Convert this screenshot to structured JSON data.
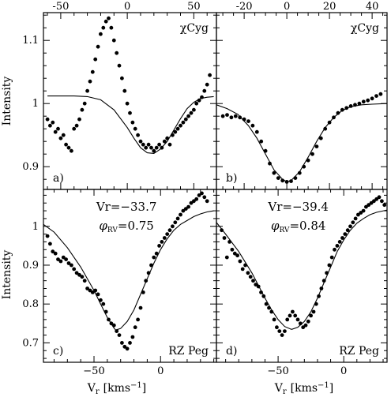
{
  "figure": {
    "ylabel": "Intensity",
    "xlabel_main": "V",
    "xlabel_sub": "r",
    "xlabel_unit": "[kms",
    "xlabel_exp": "−1",
    "xlabel_close": "]"
  },
  "chart_data": [
    {
      "type": "scatter",
      "panel": "a)",
      "star": "χCyg",
      "xlim": [
        -63,
        67
      ],
      "ylim": [
        0.864,
        1.144
      ],
      "top_ticks": [
        -50,
        0,
        50
      ],
      "left_ticks": [
        0.9,
        1,
        1.1
      ],
      "series": [
        {
          "kind": "points",
          "x": [
            -60,
            -58,
            -56,
            -54,
            -52,
            -50,
            -48,
            -46,
            -44,
            -42,
            -40,
            -38,
            -36,
            -34,
            -32,
            -30,
            -28,
            -26,
            -24,
            -22,
            -20,
            -18,
            -16,
            -14,
            -12,
            -10,
            -8,
            -6,
            -4,
            -2,
            0,
            2,
            4,
            6,
            8,
            10,
            12,
            14,
            16,
            18,
            20,
            22,
            24,
            26,
            28,
            30,
            32,
            34,
            36,
            38,
            40,
            42,
            44,
            46,
            48,
            50,
            52,
            54,
            56,
            58,
            60,
            62
          ],
          "y": [
            0.975,
            0.965,
            0.97,
            0.955,
            0.96,
            0.945,
            0.95,
            0.935,
            0.93,
            0.925,
            0.96,
            0.965,
            0.975,
            0.99,
            1.0,
            1.02,
            1.035,
            1.05,
            1.07,
            1.09,
            1.11,
            1.12,
            1.13,
            1.135,
            1.12,
            1.1,
            1.08,
            1.06,
            1.04,
            1.02,
            1.0,
            0.985,
            0.97,
            0.96,
            0.95,
            0.94,
            0.935,
            0.93,
            0.935,
            0.93,
            0.925,
            0.93,
            0.935,
            0.93,
            0.94,
            0.945,
            0.935,
            0.95,
            0.955,
            0.96,
            0.965,
            0.97,
            0.975,
            0.98,
            0.985,
            0.99,
            1.0,
            1.005,
            1.01,
            1.02,
            1.03,
            1.045
          ]
        },
        {
          "kind": "model",
          "x": [
            -60,
            -50,
            -40,
            -30,
            -20,
            -10,
            0,
            5,
            10,
            15,
            20,
            25,
            30,
            35,
            40,
            45,
            50,
            55,
            60,
            65
          ],
          "y": [
            1.012,
            1.012,
            1.012,
            1.011,
            1.006,
            0.99,
            0.962,
            0.945,
            0.93,
            0.922,
            0.921,
            0.928,
            0.94,
            0.958,
            0.976,
            0.992,
            1.002,
            1.008,
            1.01,
            1.011
          ]
        }
      ]
    },
    {
      "type": "scatter",
      "panel": "b)",
      "star": "χCyg",
      "xlim": [
        -33,
        47
      ],
      "ylim": [
        0.864,
        1.144
      ],
      "top_ticks": [
        -20,
        0,
        20,
        40
      ],
      "left_ticks": [],
      "series": [
        {
          "kind": "points",
          "x": [
            -30,
            -28,
            -26,
            -24,
            -22,
            -20,
            -18,
            -16,
            -14,
            -12,
            -10,
            -8,
            -6,
            -4,
            -2,
            0,
            2,
            4,
            6,
            8,
            10,
            12,
            14,
            16,
            18,
            20,
            22,
            24,
            26,
            28,
            30,
            32,
            34,
            36,
            38,
            40,
            42,
            44
          ],
          "y": [
            0.98,
            0.982,
            0.978,
            0.98,
            0.978,
            0.975,
            0.972,
            0.965,
            0.955,
            0.94,
            0.925,
            0.905,
            0.89,
            0.882,
            0.878,
            0.876,
            0.877,
            0.882,
            0.89,
            0.9,
            0.91,
            0.92,
            0.932,
            0.945,
            0.96,
            0.97,
            0.978,
            0.985,
            0.99,
            0.993,
            0.996,
            0.998,
            1.0,
            1.003,
            1.005,
            1.008,
            1.012,
            1.015
          ]
        },
        {
          "kind": "model",
          "x": [
            -33,
            -28,
            -23,
            -18,
            -14,
            -10,
            -6,
            -2,
            0,
            2,
            6,
            10,
            14,
            18,
            22,
            26,
            30,
            35,
            40,
            47
          ],
          "y": [
            0.998,
            0.992,
            0.983,
            0.965,
            0.945,
            0.92,
            0.895,
            0.88,
            0.876,
            0.878,
            0.892,
            0.915,
            0.94,
            0.962,
            0.978,
            0.989,
            0.995,
            0.998,
            0.999,
            1.0
          ]
        }
      ]
    },
    {
      "type": "scatter",
      "panel": "c)",
      "star": "RZ Peg",
      "annotation_vr": "Vr=−33.7",
      "annotation_phi": "0.75",
      "phi_symbol": "φ",
      "phi_sub": "RV",
      "xlim": [
        -88,
        42
      ],
      "ylim": [
        0.65,
        1.095
      ],
      "bottom_ticks": [
        -50,
        0
      ],
      "left_ticks": [
        0.7,
        0.8,
        0.9,
        1
      ],
      "series": [
        {
          "kind": "points",
          "x": [
            -85,
            -83,
            -81,
            -79,
            -77,
            -75,
            -73,
            -71,
            -69,
            -67,
            -65,
            -63,
            -61,
            -59,
            -57,
            -55,
            -53,
            -51,
            -49,
            -47,
            -45,
            -43,
            -41,
            -39,
            -37,
            -35,
            -33,
            -31,
            -29,
            -27,
            -25,
            -23,
            -21,
            -19,
            -17,
            -15,
            -13,
            -11,
            -9,
            -7,
            -5,
            -3,
            -1,
            1,
            3,
            5,
            7,
            9,
            11,
            13,
            15,
            17,
            19,
            21,
            23,
            25,
            27,
            29,
            31,
            33,
            35
          ],
          "y": [
            0.975,
            0.955,
            0.935,
            0.93,
            0.915,
            0.91,
            0.92,
            0.915,
            0.905,
            0.9,
            0.89,
            0.88,
            0.875,
            0.87,
            0.86,
            0.84,
            0.835,
            0.83,
            0.835,
            0.825,
            0.81,
            0.8,
            0.78,
            0.76,
            0.75,
            0.745,
            0.73,
            0.72,
            0.7,
            0.69,
            0.685,
            0.7,
            0.715,
            0.74,
            0.76,
            0.79,
            0.83,
            0.86,
            0.88,
            0.9,
            0.92,
            0.93,
            0.95,
            0.96,
            0.97,
            0.98,
            0.99,
            1.0,
            1.01,
            1.02,
            1.03,
            1.04,
            1.045,
            1.05,
            1.06,
            1.065,
            1.07,
            1.08,
            1.085,
            1.075,
            1.065
          ]
        },
        {
          "kind": "model",
          "x": [
            -88,
            -80,
            -70,
            -60,
            -50,
            -45,
            -40,
            -35,
            -33.7,
            -30,
            -25,
            -20,
            -15,
            -10,
            -5,
            0,
            5,
            10,
            15,
            20,
            25,
            30,
            35,
            40
          ],
          "y": [
            1.005,
            0.985,
            0.945,
            0.895,
            0.835,
            0.8,
            0.765,
            0.738,
            0.733,
            0.737,
            0.755,
            0.785,
            0.825,
            0.865,
            0.905,
            0.94,
            0.968,
            0.99,
            1.005,
            1.015,
            1.025,
            1.032,
            1.037,
            1.04
          ]
        }
      ]
    },
    {
      "type": "scatter",
      "panel": "d)",
      "star": "RZ Peg",
      "annotation_vr": "Vr=−39.4",
      "annotation_phi": "0.84",
      "phi_symbol": "φ",
      "phi_sub": "RV",
      "xlim": [
        -97,
        33
      ],
      "ylim": [
        0.65,
        1.095
      ],
      "bottom_ticks": [
        -50,
        0
      ],
      "left_ticks": [],
      "series": [
        {
          "kind": "points",
          "x": [
            -93,
            -91,
            -89,
            -87,
            -85,
            -83,
            -81,
            -79,
            -77,
            -75,
            -73,
            -71,
            -69,
            -67,
            -65,
            -63,
            -61,
            -59,
            -57,
            -55,
            -53,
            -51,
            -49,
            -47,
            -45,
            -43,
            -41,
            -39,
            -37,
            -35,
            -33,
            -31,
            -29,
            -27,
            -25,
            -23,
            -21,
            -19,
            -17,
            -15,
            -13,
            -11,
            -9,
            -7,
            -5,
            -3,
            -1,
            1,
            3,
            5,
            7,
            9,
            11,
            13,
            15,
            17,
            19,
            21,
            23,
            25,
            27,
            29,
            31
          ],
          "y": [
            0.99,
            0.97,
            0.92,
            0.96,
            0.94,
            0.93,
            0.925,
            0.91,
            0.89,
            0.9,
            0.88,
            0.87,
            0.86,
            0.85,
            0.845,
            0.83,
            0.82,
            0.8,
            0.79,
            0.78,
            0.76,
            0.74,
            0.73,
            0.72,
            0.73,
            0.76,
            0.77,
            0.78,
            0.77,
            0.76,
            0.75,
            0.74,
            0.745,
            0.755,
            0.77,
            0.78,
            0.8,
            0.82,
            0.84,
            0.86,
            0.88,
            0.9,
            0.92,
            0.94,
            0.95,
            0.96,
            0.97,
            0.98,
            0.99,
            1.0,
            1.01,
            1.02,
            1.03,
            1.035,
            1.04,
            1.05,
            1.055,
            1.06,
            1.065,
            1.07,
            1.075,
            1.065,
            1.055
          ]
        },
        {
          "kind": "model",
          "x": [
            -97,
            -90,
            -80,
            -70,
            -60,
            -55,
            -50,
            -45,
            -40,
            -39.4,
            -35,
            -30,
            -25,
            -20,
            -15,
            -10,
            -5,
            0,
            5,
            10,
            15,
            20,
            25,
            33
          ],
          "y": [
            1.01,
            0.98,
            0.935,
            0.88,
            0.815,
            0.785,
            0.76,
            0.742,
            0.735,
            0.735,
            0.74,
            0.755,
            0.78,
            0.815,
            0.855,
            0.895,
            0.935,
            0.965,
            0.99,
            1.008,
            1.02,
            1.03,
            1.036,
            1.042
          ]
        }
      ]
    }
  ]
}
